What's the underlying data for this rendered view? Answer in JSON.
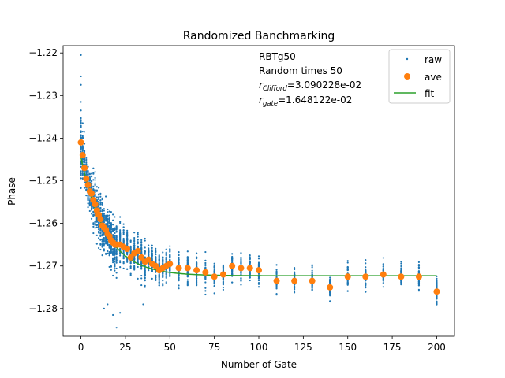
{
  "chart_data": {
    "type": "scatter",
    "title": "Randomized Banchmarking",
    "xlabel": "Number of Gate",
    "ylabel": "Phase",
    "xlim": [
      -10,
      210
    ],
    "ylim": [
      -1.2865,
      -1.2183
    ],
    "xticks": [
      0,
      25,
      50,
      75,
      100,
      125,
      150,
      175,
      200
    ],
    "yticks": [
      -1.28,
      -1.27,
      -1.26,
      -1.25,
      -1.24,
      -1.23,
      -1.22
    ],
    "legend_placement": "top-right",
    "grid": false,
    "annotation": {
      "line1": "RBTg50",
      "line2": "Random times 50",
      "r_clifford_symbol": "r",
      "r_clifford_sub": "Clifford",
      "r_clifford_value": "=3.090228e-02",
      "r_gate_symbol": "r",
      "r_gate_sub": "gate",
      "r_gate_value": "=1.648122e-02"
    },
    "series": [
      {
        "name": "raw",
        "kind": "scatter-small",
        "color": "#1f77b4",
        "x_levels": [
          0,
          1,
          2,
          3,
          4,
          5,
          6,
          7,
          8,
          9,
          10,
          11,
          12,
          13,
          14,
          15,
          16,
          17,
          18,
          19,
          20,
          22,
          24,
          26,
          28,
          30,
          32,
          34,
          36,
          38,
          40,
          42,
          44,
          46,
          48,
          50,
          55,
          60,
          65,
          70,
          75,
          80,
          85,
          90,
          95,
          100,
          110,
          120,
          130,
          140,
          150,
          160,
          170,
          180,
          190,
          200
        ],
        "samples_per_level": 50,
        "spread_by_level": [
          0.009,
          0.006,
          0.005,
          0.005,
          0.005,
          0.006,
          0.006,
          0.006,
          0.006,
          0.006,
          0.006,
          0.006,
          0.006,
          0.006,
          0.006,
          0.006,
          0.006,
          0.006,
          0.006,
          0.006,
          0.006,
          0.005,
          0.005,
          0.005,
          0.005,
          0.005,
          0.005,
          0.005,
          0.005,
          0.004,
          0.004,
          0.004,
          0.004,
          0.004,
          0.004,
          0.004,
          0.004,
          0.004,
          0.004,
          0.004,
          0.003,
          0.003,
          0.003,
          0.003,
          0.003,
          0.003,
          0.003,
          0.003,
          0.003,
          0.003,
          0.003,
          0.003,
          0.003,
          0.003,
          0.003,
          0.003
        ],
        "outliers": [
          [
            0,
            -1.2205
          ],
          [
            0,
            -1.2255
          ],
          [
            0,
            -1.2275
          ],
          [
            0,
            -1.2315
          ],
          [
            0,
            -1.2335
          ],
          [
            1,
            -1.2365
          ],
          [
            2,
            -1.2385
          ],
          [
            13,
            -1.28
          ],
          [
            15,
            -1.279
          ],
          [
            18,
            -1.2815
          ],
          [
            20,
            -1.2845
          ],
          [
            22,
            -1.281
          ],
          [
            35,
            -1.279
          ]
        ]
      },
      {
        "name": "ave",
        "kind": "scatter-large",
        "color": "#ff7f0e",
        "x": [
          0,
          1,
          2,
          3,
          4,
          5,
          6,
          7,
          8,
          9,
          10,
          11,
          12,
          13,
          14,
          15,
          16,
          17,
          18,
          19,
          20,
          22,
          24,
          26,
          28,
          30,
          32,
          34,
          36,
          38,
          40,
          42,
          44,
          46,
          48,
          50,
          55,
          60,
          65,
          70,
          75,
          80,
          85,
          90,
          95,
          100,
          110,
          120,
          130,
          140,
          150,
          160,
          170,
          180,
          190,
          200
        ],
        "y": [
          -1.241,
          -1.244,
          -1.247,
          -1.2495,
          -1.251,
          -1.2525,
          -1.253,
          -1.2545,
          -1.2555,
          -1.257,
          -1.258,
          -1.259,
          -1.2605,
          -1.261,
          -1.2615,
          -1.2625,
          -1.263,
          -1.264,
          -1.2645,
          -1.265,
          -1.265,
          -1.265,
          -1.2655,
          -1.266,
          -1.268,
          -1.267,
          -1.2665,
          -1.268,
          -1.269,
          -1.2685,
          -1.2695,
          -1.27,
          -1.271,
          -1.2705,
          -1.27,
          -1.2695,
          -1.2705,
          -1.2705,
          -1.271,
          -1.2715,
          -1.2725,
          -1.272,
          -1.27,
          -1.2705,
          -1.2705,
          -1.271,
          -1.2735,
          -1.2735,
          -1.2735,
          -1.275,
          -1.2725,
          -1.2725,
          -1.272,
          -1.2725,
          -1.2725,
          -1.276
        ]
      },
      {
        "name": "fit",
        "kind": "line",
        "color": "#2ca02c",
        "model": "a*exp(-x/b)+c",
        "params": {
          "a": 0.0278,
          "b": 14.0,
          "c": -1.2723
        },
        "x_range": [
          0,
          200
        ]
      }
    ]
  }
}
